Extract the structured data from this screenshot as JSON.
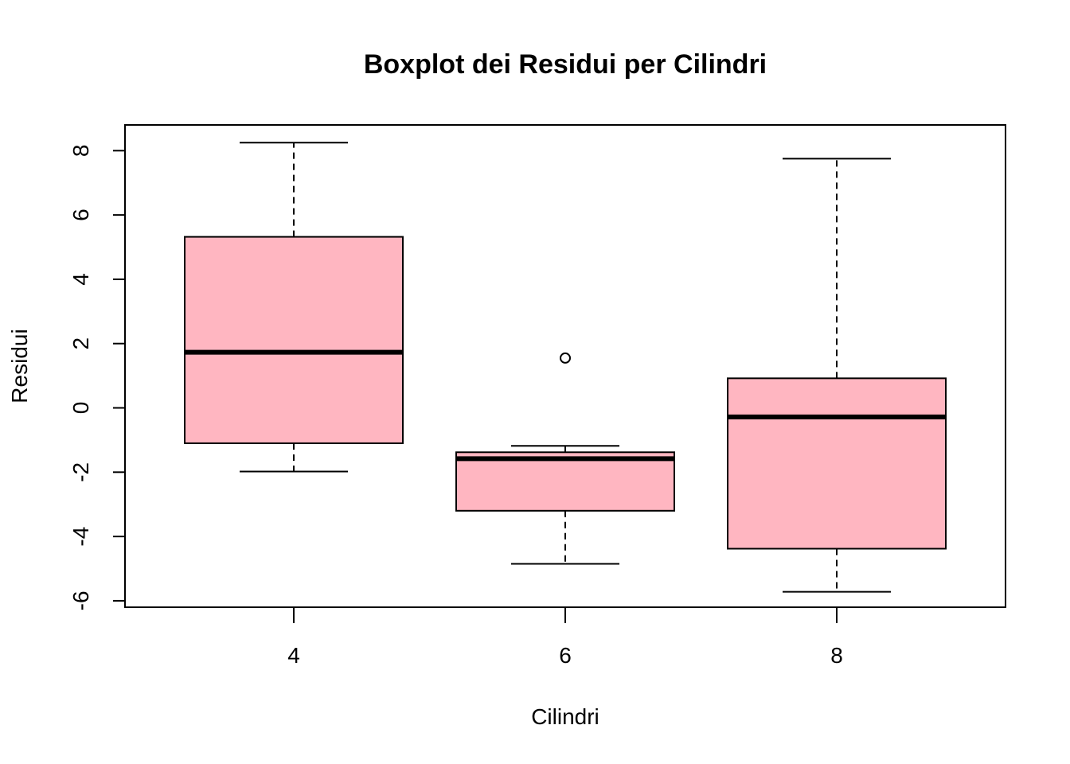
{
  "chart_data": {
    "type": "boxplot",
    "title": "Boxplot dei Residui per Cilindri",
    "xlabel": "Cilindri",
    "ylabel": "Residui",
    "categories": [
      "4",
      "6",
      "8"
    ],
    "ylim": [
      -6.2,
      8.8
    ],
    "yticks": [
      -6,
      -4,
      -2,
      0,
      2,
      4,
      6,
      8
    ],
    "ytick_labels": [
      "-6",
      "-4",
      "-2",
      "0",
      "2",
      "4",
      "6",
      "8"
    ],
    "box_color": "#FFB6C1",
    "boxes": [
      {
        "category": "4",
        "whisker_low": -1.98,
        "q1": -1.1,
        "median": 1.73,
        "q3": 5.32,
        "whisker_high": 8.25,
        "outliers": []
      },
      {
        "category": "6",
        "whisker_low": -4.85,
        "q1": -3.2,
        "median": -1.58,
        "q3": -1.38,
        "whisker_high": -1.18,
        "outliers": [
          1.55
        ]
      },
      {
        "category": "8",
        "whisker_low": -5.72,
        "q1": -4.38,
        "median": -0.28,
        "q3": 0.92,
        "whisker_high": 7.75,
        "outliers": []
      }
    ],
    "grid": false,
    "legend": "none"
  }
}
